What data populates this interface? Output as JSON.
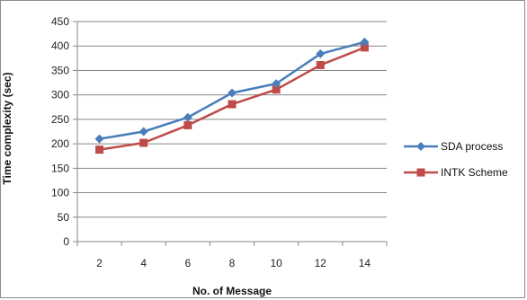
{
  "chart_data": {
    "type": "line",
    "title": "",
    "xlabel": "No. of Message",
    "ylabel": "Time complexity (sec)",
    "categories": [
      "2",
      "4",
      "6",
      "8",
      "10",
      "12",
      "14"
    ],
    "x": [
      2,
      4,
      6,
      8,
      10,
      12,
      14
    ],
    "ylim": [
      0,
      450
    ],
    "yticks": [
      0,
      50,
      100,
      150,
      200,
      250,
      300,
      350,
      400,
      450
    ],
    "grid": true,
    "legend_position": "right",
    "series": [
      {
        "name": "SDA process",
        "color": "#4a7ebb",
        "marker": "diamond",
        "values": [
          210,
          225,
          254,
          304,
          323,
          384,
          408
        ]
      },
      {
        "name": "INTK Scheme",
        "color": "#be4b48",
        "marker": "square",
        "values": [
          188,
          202,
          238,
          281,
          311,
          361,
          397
        ]
      }
    ]
  }
}
